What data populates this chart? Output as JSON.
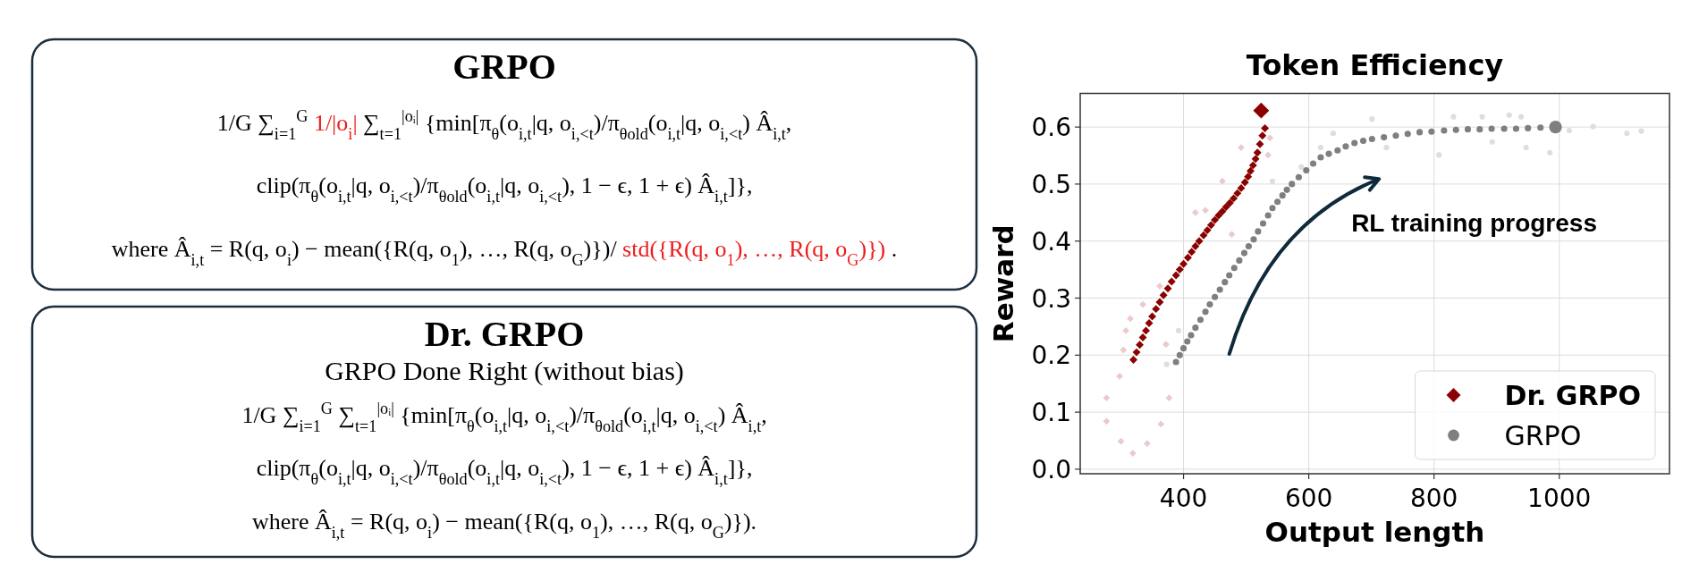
{
  "chart_data": [
    {
      "type": "other",
      "title": "GRPO",
      "annotations": [
        "1/G ∑$_{i=1}$$^{G}$",
        "1/|o$_{i}$|",
        "∑$_{t=1}$$^{|oᵢ|}$ {min[π$_{θ}$(o$_{i,t}$|q, o$_{i,<t}$)/π$_{θold}$(o$_{i,t}$|q, o$_{i,<t}$) Â$_{i,t}$,",
        "clip(π$_{θ}$(o$_{i,t}$|q, o$_{i,<t}$)/π$_{θold}$(o$_{i,t}$|q, o$_{i,<t}$), 1 − ϵ, 1 + ϵ) Â$_{i,t}$]},",
        "where Â$_{i,t}$ = R(q, o$_{i}$) − mean({R(q, o$_{1}$), …, R(q, o$_{G}$)})/",
        "std({R(q, o$_{1}$), …, R(q, o$_{G}$)})",
        "."
      ],
      "colors": [
        "#000000",
        "#ee1c1c",
        "#000000",
        "#000000",
        "#000000",
        "#ee1c1c",
        "#000000"
      ]
    },
    {
      "type": "other",
      "title": "Dr. GRPO",
      "subtitle": "GRPO Done Right (without bias)",
      "annotations": [
        "1/G ∑$_{i=1}$$^{G}$ ∑$_{t=1}$$^{|oᵢ|}$ {min[π$_{θ}$(o$_{i,t}$|q, o$_{i,<t}$)/π$_{θold}$(o$_{i,t}$|q, o$_{i,<t}$) Â$_{i,t}$,",
        "clip(π$_{θ}$(o$_{i,t}$|q, o$_{i,<t}$)/π$_{θold}$(o$_{i,t}$|q, o$_{i,<t}$), 1 − ϵ, 1 + ϵ) Â$_{i,t}$]},",
        "where Â$_{i,t}$ = R(q, o$_{i}$) − mean({R(q, o$_{1}$), …, R(q, o$_{G}$)})."
      ],
      "colors": [
        "#000000",
        "#000000",
        "#000000"
      ]
    },
    {
      "type": "scatter",
      "title": "Token Efficiency",
      "xlabel": "Output length",
      "ylabel": "Reward",
      "xlim": [
        235,
        1176
      ],
      "ylim": [
        -0.008,
        0.659
      ],
      "xticks": [
        400,
        600,
        800,
        1000
      ],
      "yticks": [
        {
          "value": 0,
          "label": "0.0"
        },
        0.1,
        0.2,
        0.3,
        0.4,
        0.5,
        0.6
      ],
      "grid": true,
      "legend": "bottom right",
      "annotations": [
        "RL training progress"
      ],
      "series": [
        {
          "type": "scatter",
          "marker": "diamond",
          "color": "#eccaca",
          "x": [
            277,
            277,
            298,
            304,
            308,
            315,
            335,
            362,
            372,
            377,
            364,
            300,
            319,
            342,
            419,
            435,
            477,
            492,
            538,
            535,
            462
          ],
          "values": [
            0.125,
            0.084,
            0.163,
            0.209,
            0.243,
            0.264,
            0.289,
            0.321,
            0.219,
            0.125,
            0.079,
            0.049,
            0.028,
            0.045,
            0.45,
            0.454,
            0.412,
            0.564,
            0.581,
            0.551,
            0.505
          ]
        },
        {
          "type": "scatter",
          "marker": "circle",
          "color": "#dedede",
          "x": [
            701,
            831,
            877,
            920,
            939,
            639,
            724,
            808,
            893,
            947,
            985,
            1016,
            1054,
            1108,
            1131,
            619,
            588,
            542,
            373,
            392
          ],
          "values": [
            0.614,
            0.618,
            0.618,
            0.621,
            0.618,
            0.589,
            0.564,
            0.551,
            0.574,
            0.564,
            0.555,
            0.594,
            0.601,
            0.589,
            0.593,
            0.564,
            0.53,
            0.505,
            0.184,
            0.243
          ]
        },
        {
          "name": "Dr. GRPO",
          "type": "bubble",
          "marker": "diamond",
          "color": "#8b0000",
          "x": [
            320,
            325,
            330,
            335,
            340,
            345,
            350,
            356,
            362,
            368,
            375,
            381,
            388,
            394,
            400,
            407,
            413,
            419,
            425,
            432,
            438,
            444,
            450,
            456,
            462,
            468,
            474,
            480,
            486,
            492,
            498,
            503,
            507,
            511,
            515,
            518,
            522,
            526,
            530,
            524
          ],
          "values": [
            0.192,
            0.205,
            0.218,
            0.231,
            0.243,
            0.256,
            0.268,
            0.281,
            0.293,
            0.305,
            0.317,
            0.329,
            0.34,
            0.35,
            0.36,
            0.371,
            0.381,
            0.391,
            0.4,
            0.41,
            0.419,
            0.428,
            0.437,
            0.445,
            0.452,
            0.46,
            0.467,
            0.475,
            0.484,
            0.493,
            0.503,
            0.513,
            0.523,
            0.533,
            0.544,
            0.555,
            0.57,
            0.585,
            0.598,
            0.629
          ],
          "sizes": [
            0.25,
            0.25,
            0.25,
            0.25,
            0.25,
            0.25,
            0.25,
            0.25,
            0.25,
            0.25,
            0.25,
            0.25,
            0.25,
            0.25,
            0.25,
            0.25,
            0.25,
            0.25,
            0.25,
            0.25,
            0.25,
            0.25,
            0.25,
            0.25,
            0.25,
            0.25,
            0.25,
            0.25,
            0.25,
            0.25,
            0.25,
            0.25,
            0.25,
            0.25,
            0.25,
            0.25,
            0.25,
            0.25,
            0.25,
            1
          ]
        },
        {
          "name": "GRPO",
          "type": "bubble",
          "marker": "circle",
          "color": "#7f7f7f",
          "x": [
            388,
            394,
            400,
            406,
            412,
            419,
            427,
            435,
            442,
            450,
            458,
            466,
            473,
            481,
            489,
            497,
            504,
            512,
            519,
            527,
            535,
            542,
            550,
            558,
            565,
            573,
            584,
            596,
            607,
            619,
            632,
            646,
            659,
            673,
            687,
            701,
            720,
            739,
            758,
            777,
            796,
            816,
            835,
            854,
            873,
            892,
            912,
            931,
            950,
            970,
            994
          ],
          "values": [
            0.188,
            0.2,
            0.212,
            0.224,
            0.235,
            0.248,
            0.262,
            0.276,
            0.289,
            0.302,
            0.315,
            0.328,
            0.34,
            0.353,
            0.366,
            0.379,
            0.391,
            0.403,
            0.417,
            0.431,
            0.445,
            0.458,
            0.469,
            0.48,
            0.49,
            0.5,
            0.512,
            0.524,
            0.536,
            0.547,
            0.553,
            0.559,
            0.566,
            0.572,
            0.576,
            0.579,
            0.582,
            0.585,
            0.588,
            0.591,
            0.592,
            0.594,
            0.595,
            0.596,
            0.596,
            0.597,
            0.597,
            0.597,
            0.598,
            0.599,
            0.6
          ],
          "sizes": [
            0.25,
            0.25,
            0.25,
            0.25,
            0.25,
            0.25,
            0.25,
            0.25,
            0.25,
            0.25,
            0.25,
            0.25,
            0.25,
            0.25,
            0.25,
            0.25,
            0.25,
            0.25,
            0.25,
            0.25,
            0.25,
            0.25,
            0.25,
            0.25,
            0.25,
            0.25,
            0.25,
            0.25,
            0.25,
            0.25,
            0.25,
            0.25,
            0.25,
            0.25,
            0.25,
            0.25,
            0.25,
            0.25,
            0.25,
            0.25,
            0.25,
            0.25,
            0.25,
            0.25,
            0.25,
            0.25,
            0.25,
            0.25,
            0.25,
            0.25,
            1
          ]
        }
      ]
    }
  ]
}
